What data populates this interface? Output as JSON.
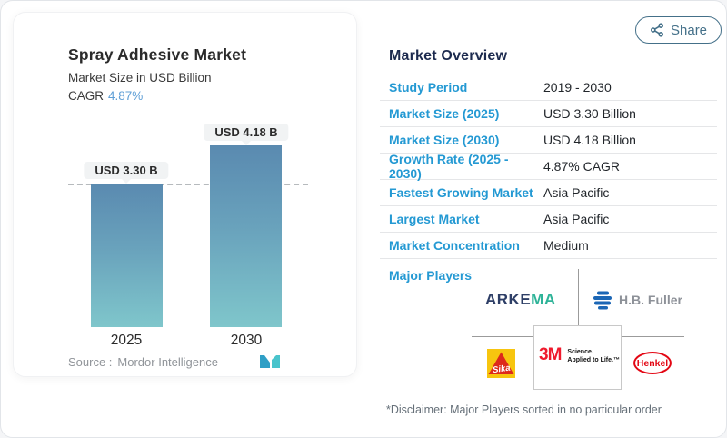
{
  "chart_panel": {
    "title": "Spray Adhesive Market",
    "subtitle": "Market Size in USD Billion",
    "cagr_label": "CAGR",
    "cagr_value": "4.87%",
    "source_label": "Source :",
    "source_value": "Mordor Intelligence"
  },
  "chart_data": {
    "type": "bar",
    "categories": [
      "2025",
      "2030"
    ],
    "values": [
      3.3,
      4.18
    ],
    "bar_labels": [
      "USD 3.30 B",
      "USD 4.18 B"
    ],
    "title": "Spray Adhesive Market",
    "ylabel": "Market Size in USD Billion",
    "reference_line": 3.3,
    "grid": false,
    "colors": {
      "bar_top": "#5a8ab0",
      "bar_bottom": "#7fc6cb",
      "label_pill_bg": "#f1f3f4",
      "dashed_line": "#b6babd"
    }
  },
  "share_button": {
    "label": "Share",
    "icon": "share-nodes-icon",
    "color": "#447089"
  },
  "overview": {
    "title": "Market Overview",
    "rows": [
      {
        "label": "Study Period",
        "value": "2019 - 2030"
      },
      {
        "label": "Market Size (2025)",
        "value": "USD 3.30 Billion"
      },
      {
        "label": "Market Size (2030)",
        "value": "USD 4.18 Billion"
      },
      {
        "label": "Growth Rate (2025 - 2030)",
        "value": "4.87% CAGR"
      },
      {
        "label": "Fastest Growing Market",
        "value": "Asia Pacific"
      },
      {
        "label": "Largest Market",
        "value": "Asia Pacific"
      },
      {
        "label": "Market Concentration",
        "value": "Medium"
      }
    ],
    "major_players_label": "Major Players",
    "players": [
      "Arkema",
      "H.B. Fuller",
      "Sika",
      "3M",
      "Henkel"
    ],
    "disclaimer": "*Disclaimer: Major Players sorted in no particular order",
    "label_color": "#2499d3"
  },
  "logos": {
    "arkema_part1": "ARKE",
    "arkema_part2": "MA",
    "hbfuller_text": "H.B. Fuller",
    "sika_text": "Sika",
    "mmm_text": "3M",
    "mmm_tagline_line1": "Science.",
    "mmm_tagline_line2": "Applied to Life.™",
    "henkel_text": "Henkel"
  }
}
